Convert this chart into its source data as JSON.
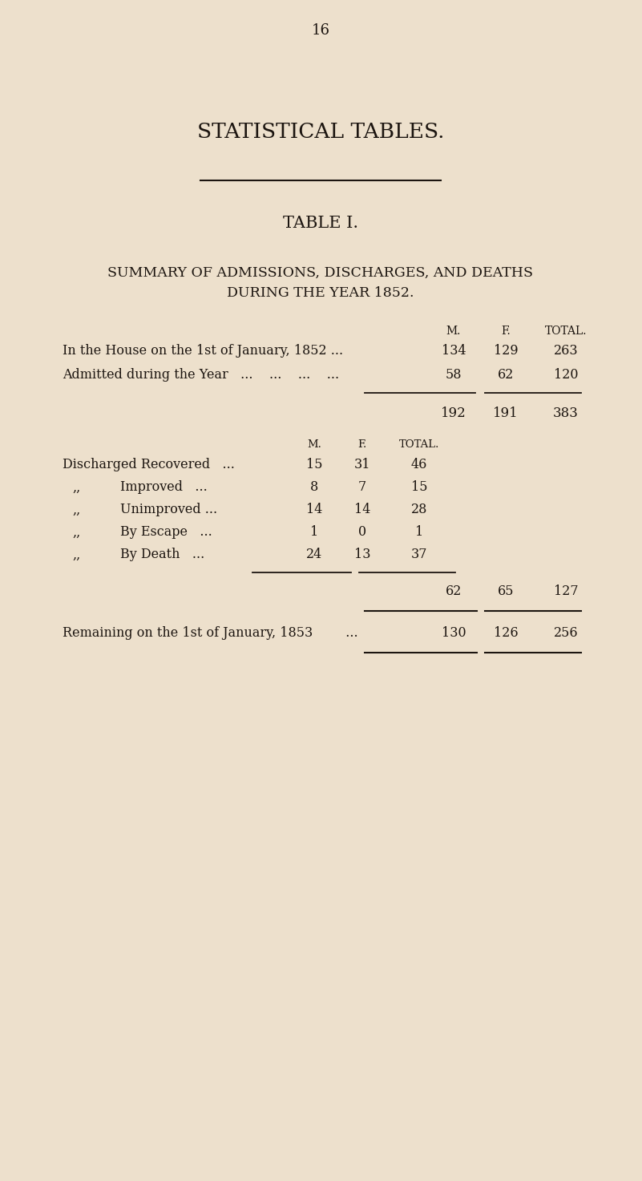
{
  "bg_color": "#ede0cc",
  "text_color": "#1c1510",
  "page_number": "16",
  "main_title": "STATISTICAL TABLES.",
  "table_title": "TABLE I.",
  "subtitle_line1": "SUMMARY OF ADMISSIONS, DISCHARGES, AND DEATHS",
  "subtitle_line2": "DURING THE YEAR 1852.",
  "col_headers": [
    "M.",
    "F.",
    "TOTAL."
  ],
  "row1_label": "In the House on the 1st of January, 1852 ...",
  "row1_vals": [
    "134",
    "129",
    "263"
  ],
  "row2_label": "Admitted during the Year   ...    ...    ...    ...",
  "row2_vals": [
    "58",
    "62",
    "120"
  ],
  "subtotal_vals": [
    "192",
    "191",
    "383"
  ],
  "inner_col_headers": [
    "M.",
    "F.",
    "TOTAL."
  ],
  "discharge_rows": [
    {
      "label1": "Discharged Recovered",
      "label2": "",
      "dots": "...",
      "m": "15",
      "f": "31",
      "total": "46"
    },
    {
      "label1": ",,",
      "label2": "Improved",
      "dots": "...",
      "m": "8",
      "f": "7",
      "total": "15"
    },
    {
      "label1": ",,",
      "label2": "Unimproved ...",
      "dots": "",
      "m": "14",
      "f": "14",
      "total": "28"
    },
    {
      "label1": ",,",
      "label2": "By Escape",
      "dots": "...",
      "m": "1",
      "f": "0",
      "total": "1"
    },
    {
      "label1": ",,",
      "label2": "By Death",
      "dots": "...",
      "m": "24",
      "f": "13",
      "total": "37"
    }
  ],
  "discharge_total_vals": [
    "62",
    "65",
    "127"
  ],
  "remaining_label": "Remaining on the 1st of January, 1853",
  "remaining_dots": "...",
  "remaining_vals": [
    "130",
    "126",
    "256"
  ],
  "fig_width": 8.01,
  "fig_height": 14.73,
  "dpi": 100
}
